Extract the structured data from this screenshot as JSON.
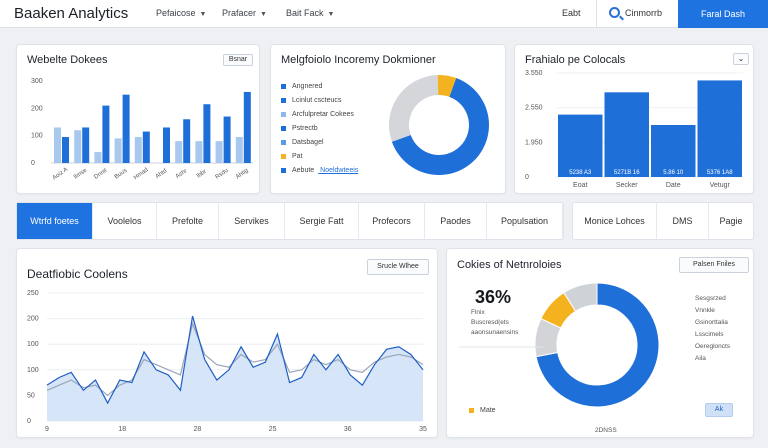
{
  "header": {
    "brand": "Baaken Analytics",
    "nav": [
      {
        "label": "Pefaicose"
      },
      {
        "label": "Prafacer"
      },
      {
        "label": "Bait Fack"
      }
    ],
    "export_label": "Eabt",
    "search_label": "Cinmorrb",
    "cta_label": "Faral Dash"
  },
  "card1": {
    "title": "Webelte Dokees",
    "button": "Bsnar",
    "chart_data": {
      "type": "bar",
      "ylim": [
        0,
        300
      ],
      "y_ticks": [
        "300",
        "200",
        "100",
        "0"
      ],
      "categories": [
        "Aoiz A",
        "Ilmse",
        "Dnnit",
        "Buus",
        "Hmad",
        "Ahtd",
        "Ashr",
        "Ibbr",
        "Rsdu",
        "Ahtig"
      ],
      "series": [
        {
          "color": "#a9c8ee",
          "values": [
            130,
            120,
            40,
            90,
            95,
            0,
            80,
            80,
            80,
            95
          ]
        },
        {
          "color": "#1f6fd8",
          "values": [
            95,
            130,
            210,
            250,
            115,
            130,
            160,
            215,
            170,
            260
          ]
        },
        {
          "color": "#5a9be6",
          "values": [
            0,
            0,
            0,
            0,
            0,
            0,
            0,
            0,
            0,
            0
          ]
        }
      ]
    }
  },
  "card2": {
    "title": "Melgfoiolo Incoremy Dokmioner",
    "legend": [
      {
        "label": "Angnered",
        "color": "#1f6fd8"
      },
      {
        "label": "Lcinlut cscteucs",
        "color": "#1f6fd8"
      },
      {
        "label": "Arcfulpretar Cokees",
        "color": "#8fb8ea"
      },
      {
        "label": "Pstrectb",
        "color": "#1f6fd8"
      },
      {
        "label": "Datsbagel",
        "color": "#5a9be6"
      },
      {
        "label": "Pat",
        "color": "#f5b21f"
      },
      {
        "label": "Aebute",
        "color": "#1f6fd8",
        "link": "Noeldwteeis"
      }
    ],
    "chart_data": {
      "type": "pie",
      "slices": [
        {
          "value": 64,
          "color": "#1f6fd8"
        },
        {
          "value": 30,
          "color": "#d4d6da"
        },
        {
          "value": 6,
          "color": "#f5b21f"
        }
      ]
    }
  },
  "card3": {
    "title": "Frahialo pe Colocals",
    "chart_data": {
      "type": "bar",
      "ylim": [
        0,
        3500
      ],
      "y_ticks": [
        "3.550",
        "2.550",
        "1.950",
        "0"
      ],
      "categories": [
        "Eoat",
        "Secker",
        "Date",
        "Vetugr"
      ],
      "bar_labels": [
        "5238 A3",
        "5271B 16",
        "5.86 10",
        "5376 1A8"
      ],
      "values": [
        2100,
        2850,
        1750,
        3250
      ]
    }
  },
  "tabs": {
    "main": [
      {
        "label": "Wtrfd foetes",
        "active": true
      },
      {
        "label": "Voolelos"
      },
      {
        "label": "Prefolte"
      },
      {
        "label": "Servikes"
      },
      {
        "label": "Sergie Fatt"
      },
      {
        "label": "Profecors"
      },
      {
        "label": "Paodes"
      },
      {
        "label": "Populsation"
      }
    ],
    "secondary": [
      {
        "label": "Monice Lohces"
      },
      {
        "label": "DMS"
      },
      {
        "label": "Pagie"
      }
    ]
  },
  "card4": {
    "title": "Deatfiobic Coolens",
    "button": "Srucle Wlhee",
    "chart_data": {
      "type": "area",
      "ylim": [
        0,
        250
      ],
      "y_ticks": [
        "250",
        "200",
        "100",
        "100",
        "50",
        "0"
      ],
      "x_ticks": [
        "9",
        "18",
        "28",
        "25",
        "36",
        "35"
      ],
      "series": [
        {
          "color": "#1f5fc4",
          "values": [
            70,
            85,
            95,
            60,
            80,
            35,
            80,
            75,
            135,
            100,
            90,
            60,
            205,
            120,
            80,
            100,
            145,
            105,
            115,
            170,
            75,
            85,
            130,
            100,
            130,
            90,
            70,
            110,
            140,
            145,
            130,
            100
          ]
        },
        {
          "color": "#9aa6b8",
          "values": [
            60,
            70,
            80,
            65,
            70,
            50,
            70,
            80,
            120,
            110,
            100,
            90,
            190,
            130,
            110,
            105,
            130,
            115,
            120,
            150,
            95,
            100,
            120,
            110,
            120,
            100,
            95,
            115,
            125,
            130,
            125,
            110
          ]
        }
      ]
    }
  },
  "card5": {
    "title": "Cokies of Netnroloies",
    "button": "Palsen Fniles",
    "stat": "36%",
    "stat_lines": [
      "Flnix",
      "Buscresd(ets",
      "aaonsunaensins"
    ],
    "right_labels": [
      "Sesgsrzed",
      "Vnnkle",
      "Gsinorttalia",
      "Lsscimels",
      "Oeregloncts",
      "Aila"
    ],
    "legend_label": "Mate",
    "badge": "Ak",
    "bottom_label": "2DNSS",
    "chart_data": {
      "type": "pie",
      "slices": [
        {
          "value": 72,
          "color": "#1f6fd8"
        },
        {
          "value": 10,
          "color": "#d2d4d8"
        },
        {
          "value": 9,
          "color": "#f5b21f"
        },
        {
          "value": 9,
          "color": "#cfd2d7"
        }
      ]
    }
  }
}
